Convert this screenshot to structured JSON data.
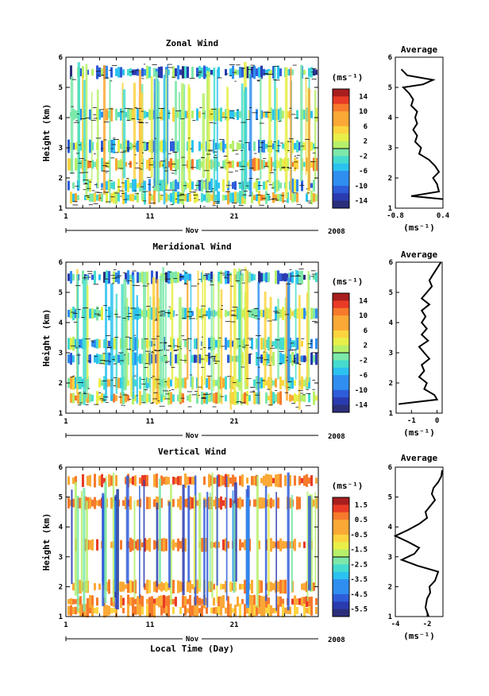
{
  "chart_data": [
    {
      "type": "heatmap",
      "title": "Zonal Wind",
      "ylabel": "Height (km)",
      "yticks": [
        "1",
        "2",
        "3",
        "4",
        "5",
        "6"
      ],
      "ylim": [
        1,
        6
      ],
      "xticks": [
        "1",
        "11",
        "21"
      ],
      "xlim": [
        1,
        31
      ],
      "month_label": "Nov",
      "year_label": "2008",
      "colorbar": {
        "unit": "(ms⁻¹)",
        "labels": [
          "14",
          "10",
          "6",
          "2",
          "-2",
          "-6",
          "-10",
          "-14"
        ],
        "range": [
          -16,
          16
        ]
      },
      "layers": [
        {
          "height": 5.5,
          "level": 0.3
        },
        {
          "height": 4.1,
          "level": 0.5
        },
        {
          "height": 3.05,
          "level": 0.4
        },
        {
          "height": 2.45,
          "level": 0.6
        },
        {
          "height": 1.75,
          "level": 0.4
        },
        {
          "height": 1.35,
          "level": 0.55
        }
      ],
      "average": {
        "title": "Average",
        "xlabel": "(ms⁻¹)",
        "xticks": [
          "-0.8",
          "0.4"
        ],
        "xlim": [
          -0.8,
          0.4
        ],
        "ylim": [
          1,
          6
        ],
        "yticks": [
          "1",
          "2",
          "3",
          "4",
          "5",
          "6"
        ],
        "points": [
          [
            1.3,
            0.4
          ],
          [
            1.4,
            -0.4
          ],
          [
            1.55,
            0.3
          ],
          [
            1.8,
            0.25
          ],
          [
            2.0,
            0.15
          ],
          [
            2.2,
            0.3
          ],
          [
            2.4,
            0.2
          ],
          [
            2.6,
            0.05
          ],
          [
            2.8,
            -0.2
          ],
          [
            3.0,
            -0.15
          ],
          [
            3.2,
            -0.3
          ],
          [
            3.4,
            -0.25
          ],
          [
            3.6,
            -0.35
          ],
          [
            3.8,
            -0.25
          ],
          [
            4.0,
            -0.3
          ],
          [
            4.2,
            -0.25
          ],
          [
            4.4,
            -0.4
          ],
          [
            4.6,
            -0.35
          ],
          [
            4.8,
            -0.45
          ],
          [
            5.0,
            -0.6
          ],
          [
            5.1,
            -0.1
          ],
          [
            5.25,
            0.15
          ],
          [
            5.4,
            -0.5
          ],
          [
            5.6,
            -0.65
          ]
        ]
      }
    },
    {
      "type": "heatmap",
      "title": "Meridional Wind",
      "ylabel": "Height (km)",
      "yticks": [
        "1",
        "2",
        "3",
        "4",
        "5",
        "6"
      ],
      "ylim": [
        1,
        6
      ],
      "xticks": [
        "1",
        "11",
        "21"
      ],
      "xlim": [
        1,
        31
      ],
      "month_label": "Nov",
      "year_label": "2008",
      "colorbar": {
        "unit": "(ms⁻¹)",
        "labels": [
          "14",
          "10",
          "6",
          "2",
          "-2",
          "-6",
          "-10",
          "-14"
        ],
        "range": [
          -16,
          16
        ]
      },
      "layers": [
        {
          "height": 5.5,
          "level": 0.3
        },
        {
          "height": 4.3,
          "level": 0.45
        },
        {
          "height": 3.3,
          "level": 0.45
        },
        {
          "height": 2.8,
          "level": 0.35
        },
        {
          "height": 2.0,
          "level": 0.55
        },
        {
          "height": 1.5,
          "level": 0.6
        }
      ],
      "average": {
        "title": "Average",
        "xlabel": "(ms⁻¹)",
        "xticks": [
          "-1",
          "0"
        ],
        "xlim": [
          -1.6,
          0.2
        ],
        "ylim": [
          1,
          6
        ],
        "yticks": [
          "1",
          "2",
          "3",
          "4",
          "5",
          "6"
        ],
        "points": [
          [
            1.3,
            -1.5
          ],
          [
            1.45,
            0.0
          ],
          [
            1.6,
            -0.1
          ],
          [
            1.8,
            -0.5
          ],
          [
            2.0,
            -0.4
          ],
          [
            2.2,
            -0.7
          ],
          [
            2.4,
            -0.5
          ],
          [
            2.6,
            -0.6
          ],
          [
            2.8,
            -0.3
          ],
          [
            3.0,
            -0.5
          ],
          [
            3.2,
            -0.7
          ],
          [
            3.4,
            -0.35
          ],
          [
            3.6,
            -0.6
          ],
          [
            3.8,
            -0.4
          ],
          [
            4.0,
            -0.6
          ],
          [
            4.2,
            -0.45
          ],
          [
            4.4,
            -0.6
          ],
          [
            4.6,
            -0.3
          ],
          [
            4.8,
            -0.6
          ],
          [
            5.0,
            -0.4
          ],
          [
            5.2,
            -0.2
          ],
          [
            5.4,
            -0.3
          ],
          [
            5.6,
            -0.15
          ],
          [
            5.8,
            0.0
          ],
          [
            6.0,
            0.15
          ]
        ]
      }
    },
    {
      "type": "heatmap",
      "title": "Vertical Wind",
      "xlabel": "Local Time (Day)",
      "ylabel": "Height (km)",
      "yticks": [
        "1",
        "2",
        "3",
        "4",
        "5",
        "6"
      ],
      "ylim": [
        1,
        6
      ],
      "xticks": [
        "1",
        "11",
        "21"
      ],
      "xlim": [
        1,
        31
      ],
      "month_label": "Nov",
      "year_label": "2008",
      "colorbar": {
        "unit": "(ms⁻¹)",
        "labels": [
          "1.5",
          "0.5",
          "-0.5",
          "-1.5",
          "-2.5",
          "-3.5",
          "-4.5",
          "-5.5"
        ],
        "range": [
          -6,
          2
        ]
      },
      "layers": [
        {
          "height": 5.55,
          "level": 0.8
        },
        {
          "height": 4.8,
          "level": 0.8
        },
        {
          "height": 3.4,
          "level": 0.8
        },
        {
          "height": 2.0,
          "level": 0.75
        },
        {
          "height": 1.5,
          "level": 0.8
        },
        {
          "height": 1.2,
          "level": 0.75
        }
      ],
      "average": {
        "title": "Average",
        "xlabel": "(ms⁻¹)",
        "xticks": [
          "-4",
          "-2"
        ],
        "xlim": [
          -4.0,
          -1.0
        ],
        "ylim": [
          1,
          6
        ],
        "yticks": [
          "1",
          "2",
          "3",
          "4",
          "5",
          "6"
        ],
        "points": [
          [
            1.0,
            -1.9
          ],
          [
            1.3,
            -2.1
          ],
          [
            1.6,
            -2.0
          ],
          [
            1.8,
            -1.8
          ],
          [
            2.0,
            -1.85
          ],
          [
            2.2,
            -1.5
          ],
          [
            2.5,
            -1.3
          ],
          [
            2.7,
            -2.6
          ],
          [
            2.9,
            -3.6
          ],
          [
            3.1,
            -2.8
          ],
          [
            3.3,
            -2.5
          ],
          [
            3.5,
            -3.2
          ],
          [
            3.7,
            -4.0
          ],
          [
            3.9,
            -3.2
          ],
          [
            4.1,
            -2.5
          ],
          [
            4.3,
            -2.0
          ],
          [
            4.5,
            -2.1
          ],
          [
            4.7,
            -1.8
          ],
          [
            4.9,
            -1.5
          ],
          [
            5.1,
            -1.7
          ],
          [
            5.3,
            -1.6
          ],
          [
            5.5,
            -1.3
          ],
          [
            5.7,
            -1.1
          ],
          [
            5.9,
            -1.05
          ]
        ]
      }
    }
  ]
}
